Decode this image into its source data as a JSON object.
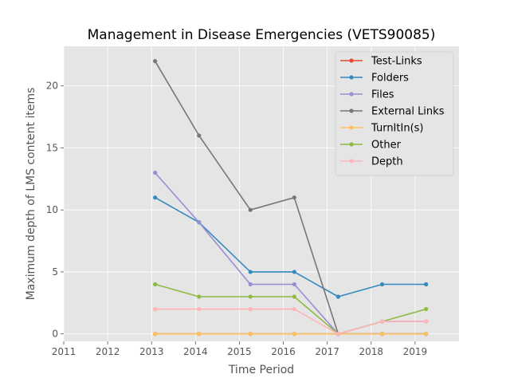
{
  "chart_data": {
    "type": "line",
    "title": "Management in Disease Emergencies (VETS90085)",
    "xlabel": "Time Period",
    "ylabel": "Maximum depth of LMS content items",
    "xlim": [
      2011,
      2020
    ],
    "ylim": [
      -0.6,
      23.2
    ],
    "xticks": [
      2011,
      2012,
      2013,
      2014,
      2015,
      2016,
      2017,
      2018,
      2019
    ],
    "yticks": [
      0,
      5,
      10,
      15,
      20
    ],
    "grid": true,
    "legend_position": "top-right",
    "x": [
      2013.08,
      2014.08,
      2015.25,
      2016.25,
      2017.25,
      2018.25,
      2019.25
    ],
    "series": [
      {
        "name": "Test-Links",
        "color": "#e24a33",
        "values": [
          0,
          0,
          0,
          0,
          0,
          0,
          0
        ]
      },
      {
        "name": "Folders",
        "color": "#348abd",
        "values": [
          11,
          9,
          5,
          5,
          3,
          4,
          4
        ]
      },
      {
        "name": "Files",
        "color": "#988ed5",
        "values": [
          13,
          9,
          4,
          4,
          0,
          1,
          1
        ]
      },
      {
        "name": "External Links",
        "color": "#777777",
        "values": [
          22,
          16,
          10,
          11,
          0,
          0,
          0
        ]
      },
      {
        "name": "TurnItIn(s)",
        "color": "#fbc15e",
        "values": [
          0,
          0,
          0,
          0,
          0,
          0,
          0
        ]
      },
      {
        "name": "Other",
        "color": "#8eba42",
        "values": [
          4,
          3,
          3,
          3,
          0,
          1,
          2
        ]
      },
      {
        "name": "Depth",
        "color": "#ffb5b8",
        "values": [
          2,
          2,
          2,
          2,
          0,
          1,
          1
        ]
      }
    ]
  }
}
